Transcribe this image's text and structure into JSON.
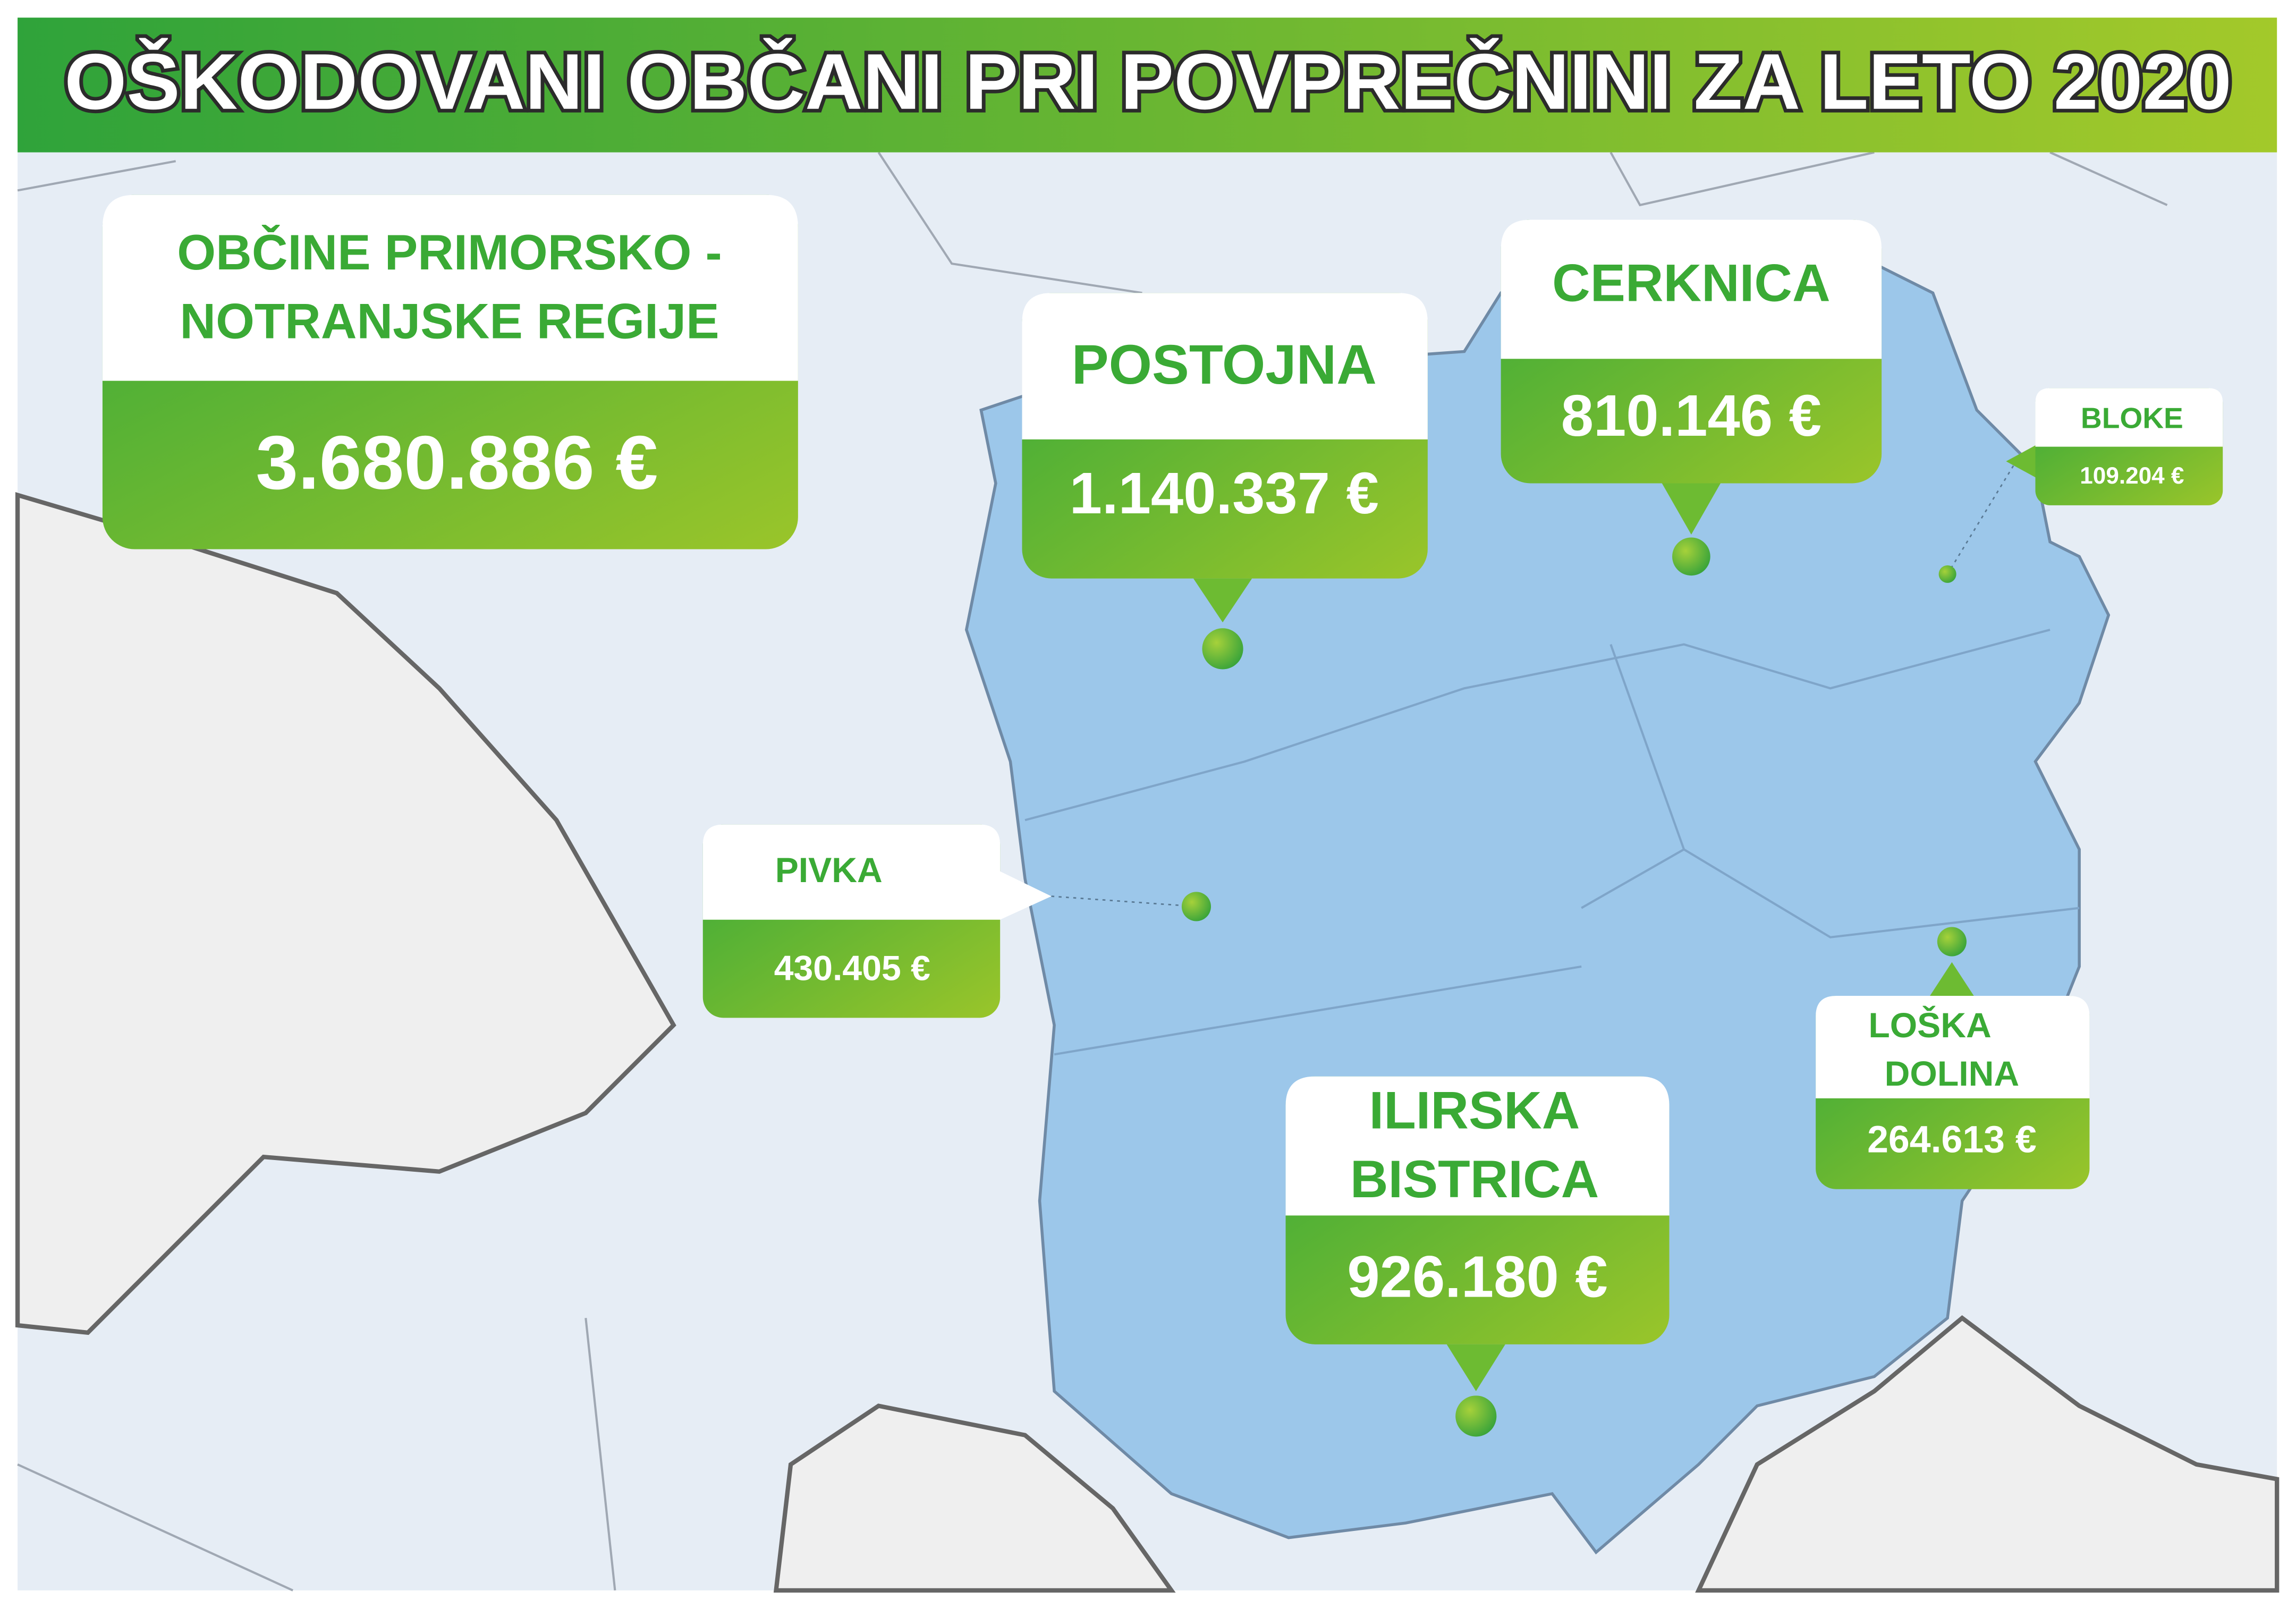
{
  "title": "OŠKODOVANI OBČANI PRI POVPREČNINI ZA LETO 2020",
  "total": {
    "name_lines": [
      "OBČINE PRIMORSKO -",
      "NOTRANJSKE REGIJE"
    ],
    "value": "3.680.886 €"
  },
  "municipalities": [
    {
      "name_lines": [
        "POSTOJNA"
      ],
      "value": "1.140.337 €"
    },
    {
      "name_lines": [
        "CERKNICA"
      ],
      "value": "810.146 €"
    },
    {
      "name_lines": [
        "BLOKE"
      ],
      "value": "109.204 €"
    },
    {
      "name_lines": [
        "PIVKA"
      ],
      "value": "430.405 €"
    },
    {
      "name_lines": [
        "LOŠKA",
        "DOLINA"
      ],
      "value": "264.613 €"
    },
    {
      "name_lines": [
        "ILIRSKA",
        "BISTRICA"
      ],
      "value": "926.180 €"
    }
  ]
}
